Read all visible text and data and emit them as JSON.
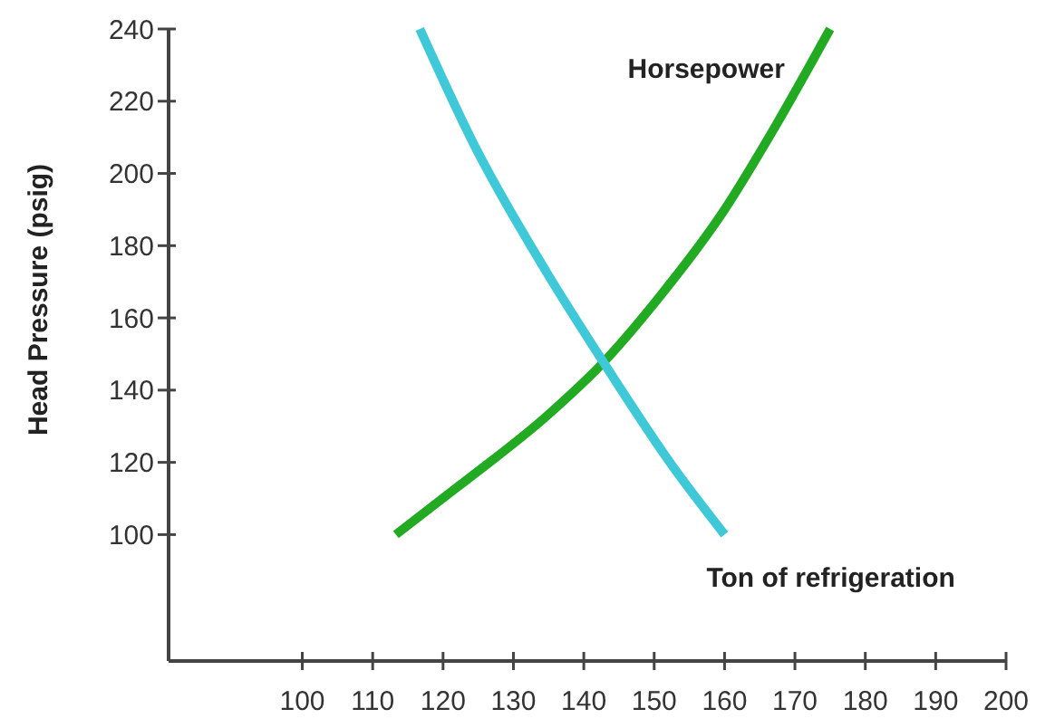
{
  "chart_data": {
    "type": "line",
    "ylabel": "Head Pressure (psig)",
    "xlim": [
      81,
      200
    ],
    "ylim": [
      65,
      240
    ],
    "xticks": [
      100,
      110,
      120,
      130,
      140,
      150,
      160,
      170,
      180,
      190,
      200
    ],
    "yticks": [
      100,
      120,
      140,
      160,
      180,
      200,
      220,
      240
    ],
    "grid": false,
    "marker": "none",
    "line_style": "solid",
    "series": [
      {
        "name": "Horsepower",
        "color": "#22aa22",
        "x": [
          113.3,
          122.6,
          134.6,
          142.8,
          150,
          160,
          167.2,
          175
        ],
        "values": [
          100,
          114,
          132.6,
          147.7,
          164,
          190,
          213,
          240
        ]
      },
      {
        "name": "Ton of refrigeration",
        "color": "#3ec8d8",
        "x": [
          116.7,
          124.4,
          134.6,
          142.8,
          152.6,
          160
        ],
        "values": [
          240,
          208,
          173,
          147.7,
          119,
          100
        ]
      }
    ]
  }
}
